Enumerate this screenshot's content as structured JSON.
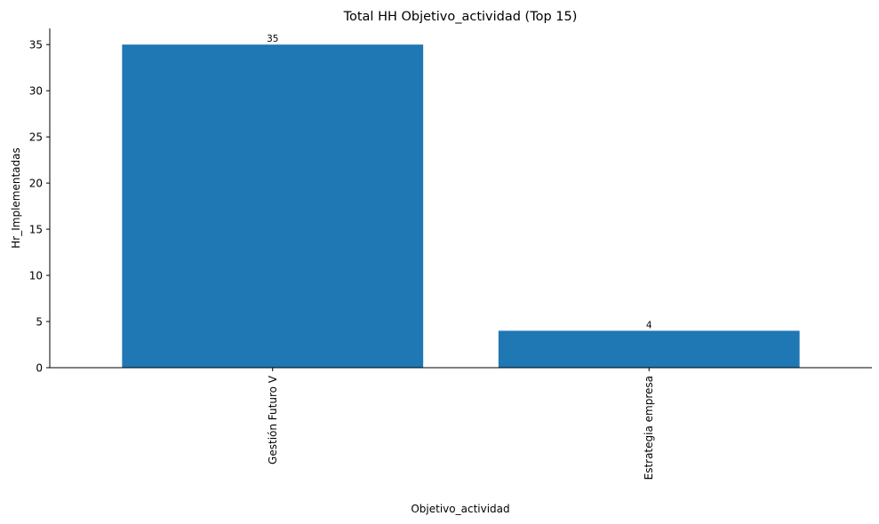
{
  "chart_data": {
    "type": "bar",
    "title": "Total HH Objetivo_actividad (Top 15)",
    "xlabel": "Objetivo_actividad",
    "ylabel": "Hr_Implementadas",
    "categories": [
      "Gestión Futuro V",
      "Estrategia empresa"
    ],
    "values": [
      35,
      4
    ],
    "data_labels": [
      "35",
      "4"
    ],
    "yticks": [
      0,
      5,
      10,
      15,
      20,
      25,
      30,
      35
    ],
    "ylim": [
      0,
      36.75
    ],
    "bar_color": "#1f77b4",
    "grid": false,
    "legend": "none",
    "x_tick_rotation": "vertical"
  }
}
